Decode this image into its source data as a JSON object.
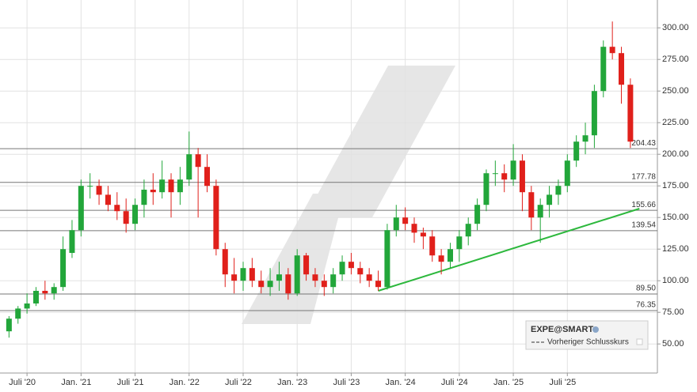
{
  "chart_data": {
    "type": "candlestick",
    "x": [
      "2020-05",
      "2020-06",
      "2020-07",
      "2020-08",
      "2020-09",
      "2020-10",
      "2020-11",
      "2020-12",
      "2021-01",
      "2021-02",
      "2021-03",
      "2021-04",
      "2021-05",
      "2021-06",
      "2021-07",
      "2021-08",
      "2021-09",
      "2021-10",
      "2021-11",
      "2021-12",
      "2022-01",
      "2022-02",
      "2022-03",
      "2022-04",
      "2022-05",
      "2022-06",
      "2022-07",
      "2022-08",
      "2022-09",
      "2022-10",
      "2022-11",
      "2022-12",
      "2023-01",
      "2023-02",
      "2023-03",
      "2023-04",
      "2023-05",
      "2023-06",
      "2023-07",
      "2023-08",
      "2023-09",
      "2023-10",
      "2023-11",
      "2023-12",
      "2024-01",
      "2024-02",
      "2024-03",
      "2024-04",
      "2024-05",
      "2024-06",
      "2024-07",
      "2024-08",
      "2024-09",
      "2024-10",
      "2024-11",
      "2024-12",
      "2025-01",
      "2025-02",
      "2025-03",
      "2025-04",
      "2025-05",
      "2025-06",
      "2025-07",
      "2025-08",
      "2025-09",
      "2025-10",
      "2025-11",
      "2025-12",
      "2026-01",
      "2026-02"
    ],
    "open": [
      60,
      70,
      78,
      82,
      92,
      90,
      95,
      122,
      140,
      175,
      175,
      168,
      160,
      155,
      145,
      160,
      172,
      170,
      180,
      170,
      180,
      200,
      190,
      175,
      125,
      105,
      100,
      110,
      100,
      95,
      100,
      105,
      90,
      120,
      105,
      100,
      95,
      105,
      115,
      110,
      105,
      100,
      95,
      140,
      150,
      145,
      138,
      135,
      120,
      115,
      125,
      135,
      145,
      160,
      185,
      185,
      180,
      195,
      170,
      150,
      160,
      168,
      175,
      195,
      210,
      215,
      250,
      285,
      280,
      255
    ],
    "high": [
      72,
      80,
      90,
      95,
      100,
      98,
      135,
      148,
      180,
      185,
      180,
      175,
      170,
      165,
      165,
      180,
      185,
      195,
      185,
      190,
      218,
      205,
      200,
      180,
      130,
      118,
      115,
      118,
      108,
      110,
      115,
      110,
      125,
      122,
      110,
      105,
      110,
      120,
      122,
      115,
      110,
      108,
      145,
      160,
      158,
      150,
      142,
      140,
      125,
      130,
      140,
      150,
      165,
      188,
      195,
      192,
      208,
      200,
      175,
      165,
      175,
      180,
      200,
      215,
      225,
      255,
      290,
      305,
      285,
      260
    ],
    "low": [
      55,
      66,
      74,
      80,
      85,
      85,
      92,
      118,
      135,
      165,
      160,
      155,
      148,
      138,
      140,
      150,
      160,
      165,
      150,
      160,
      175,
      150,
      170,
      120,
      95,
      90,
      92,
      95,
      90,
      88,
      92,
      85,
      88,
      100,
      95,
      88,
      90,
      100,
      105,
      98,
      95,
      92,
      93,
      135,
      140,
      130,
      125,
      115,
      105,
      110,
      115,
      128,
      140,
      155,
      175,
      170,
      175,
      155,
      140,
      130,
      150,
      160,
      170,
      190,
      200,
      205,
      245,
      275,
      240,
      205
    ],
    "close": [
      70,
      78,
      82,
      92,
      90,
      95,
      125,
      140,
      175,
      175,
      168,
      160,
      155,
      145,
      160,
      172,
      170,
      180,
      170,
      180,
      200,
      190,
      175,
      125,
      105,
      100,
      110,
      100,
      95,
      100,
      105,
      90,
      120,
      105,
      100,
      95,
      105,
      115,
      110,
      105,
      100,
      95,
      140,
      150,
      145,
      138,
      135,
      120,
      115,
      125,
      135,
      145,
      160,
      185,
      185,
      180,
      195,
      170,
      150,
      160,
      168,
      175,
      195,
      210,
      215,
      250,
      285,
      280,
      255,
      210
    ],
    "up_color": "#22a63a",
    "down_color": "#e0201b",
    "xlim": [
      "2020-04",
      "2026-05"
    ],
    "xticks": [
      {
        "value": "2020-07",
        "label": "Juli '20"
      },
      {
        "value": "2021-01",
        "label": "Jan. '21"
      },
      {
        "value": "2021-07",
        "label": "Juli '21"
      },
      {
        "value": "2022-01",
        "label": "Jan. '22"
      },
      {
        "value": "2022-07",
        "label": "Juli '22"
      },
      {
        "value": "2023-01",
        "label": "Jan. '23"
      },
      {
        "value": "2023-07",
        "label": "Juli '23"
      },
      {
        "value": "2024-01",
        "label": "Jan. '24"
      },
      {
        "value": "2024-07",
        "label": "Juli '24"
      },
      {
        "value": "2025-01",
        "label": "Jan. '25"
      },
      {
        "value": "2025-07",
        "label": "Juli '25"
      }
    ],
    "ylim": [
      27,
      322
    ],
    "yticks": [
      {
        "value": 50,
        "label": "50.00"
      },
      {
        "value": 75,
        "label": "75.00"
      },
      {
        "value": 100,
        "label": "100.00"
      },
      {
        "value": 125,
        "label": "125.00"
      },
      {
        "value": 150,
        "label": "150.00"
      },
      {
        "value": 175,
        "label": "175.00"
      },
      {
        "value": 200,
        "label": "200.00"
      },
      {
        "value": 225,
        "label": "225.00"
      },
      {
        "value": 250,
        "label": "250.00"
      },
      {
        "value": 275,
        "label": "275.00"
      },
      {
        "value": 300,
        "label": "300.00"
      }
    ],
    "grid": true,
    "levels": [
      204.43,
      177.78,
      155.66,
      139.54,
      {
        "value": 89.5,
        "label": "89.50"
      },
      76.35
    ],
    "level_color": "#777777",
    "trendline": {
      "x": [
        "2023-10",
        "2026-03"
      ],
      "values": [
        92,
        157
      ],
      "color": "#2db83d"
    },
    "legend": {
      "title": "EXPE@SMART",
      "items": [
        "Vorheriger Schlusskurs"
      ]
    }
  }
}
